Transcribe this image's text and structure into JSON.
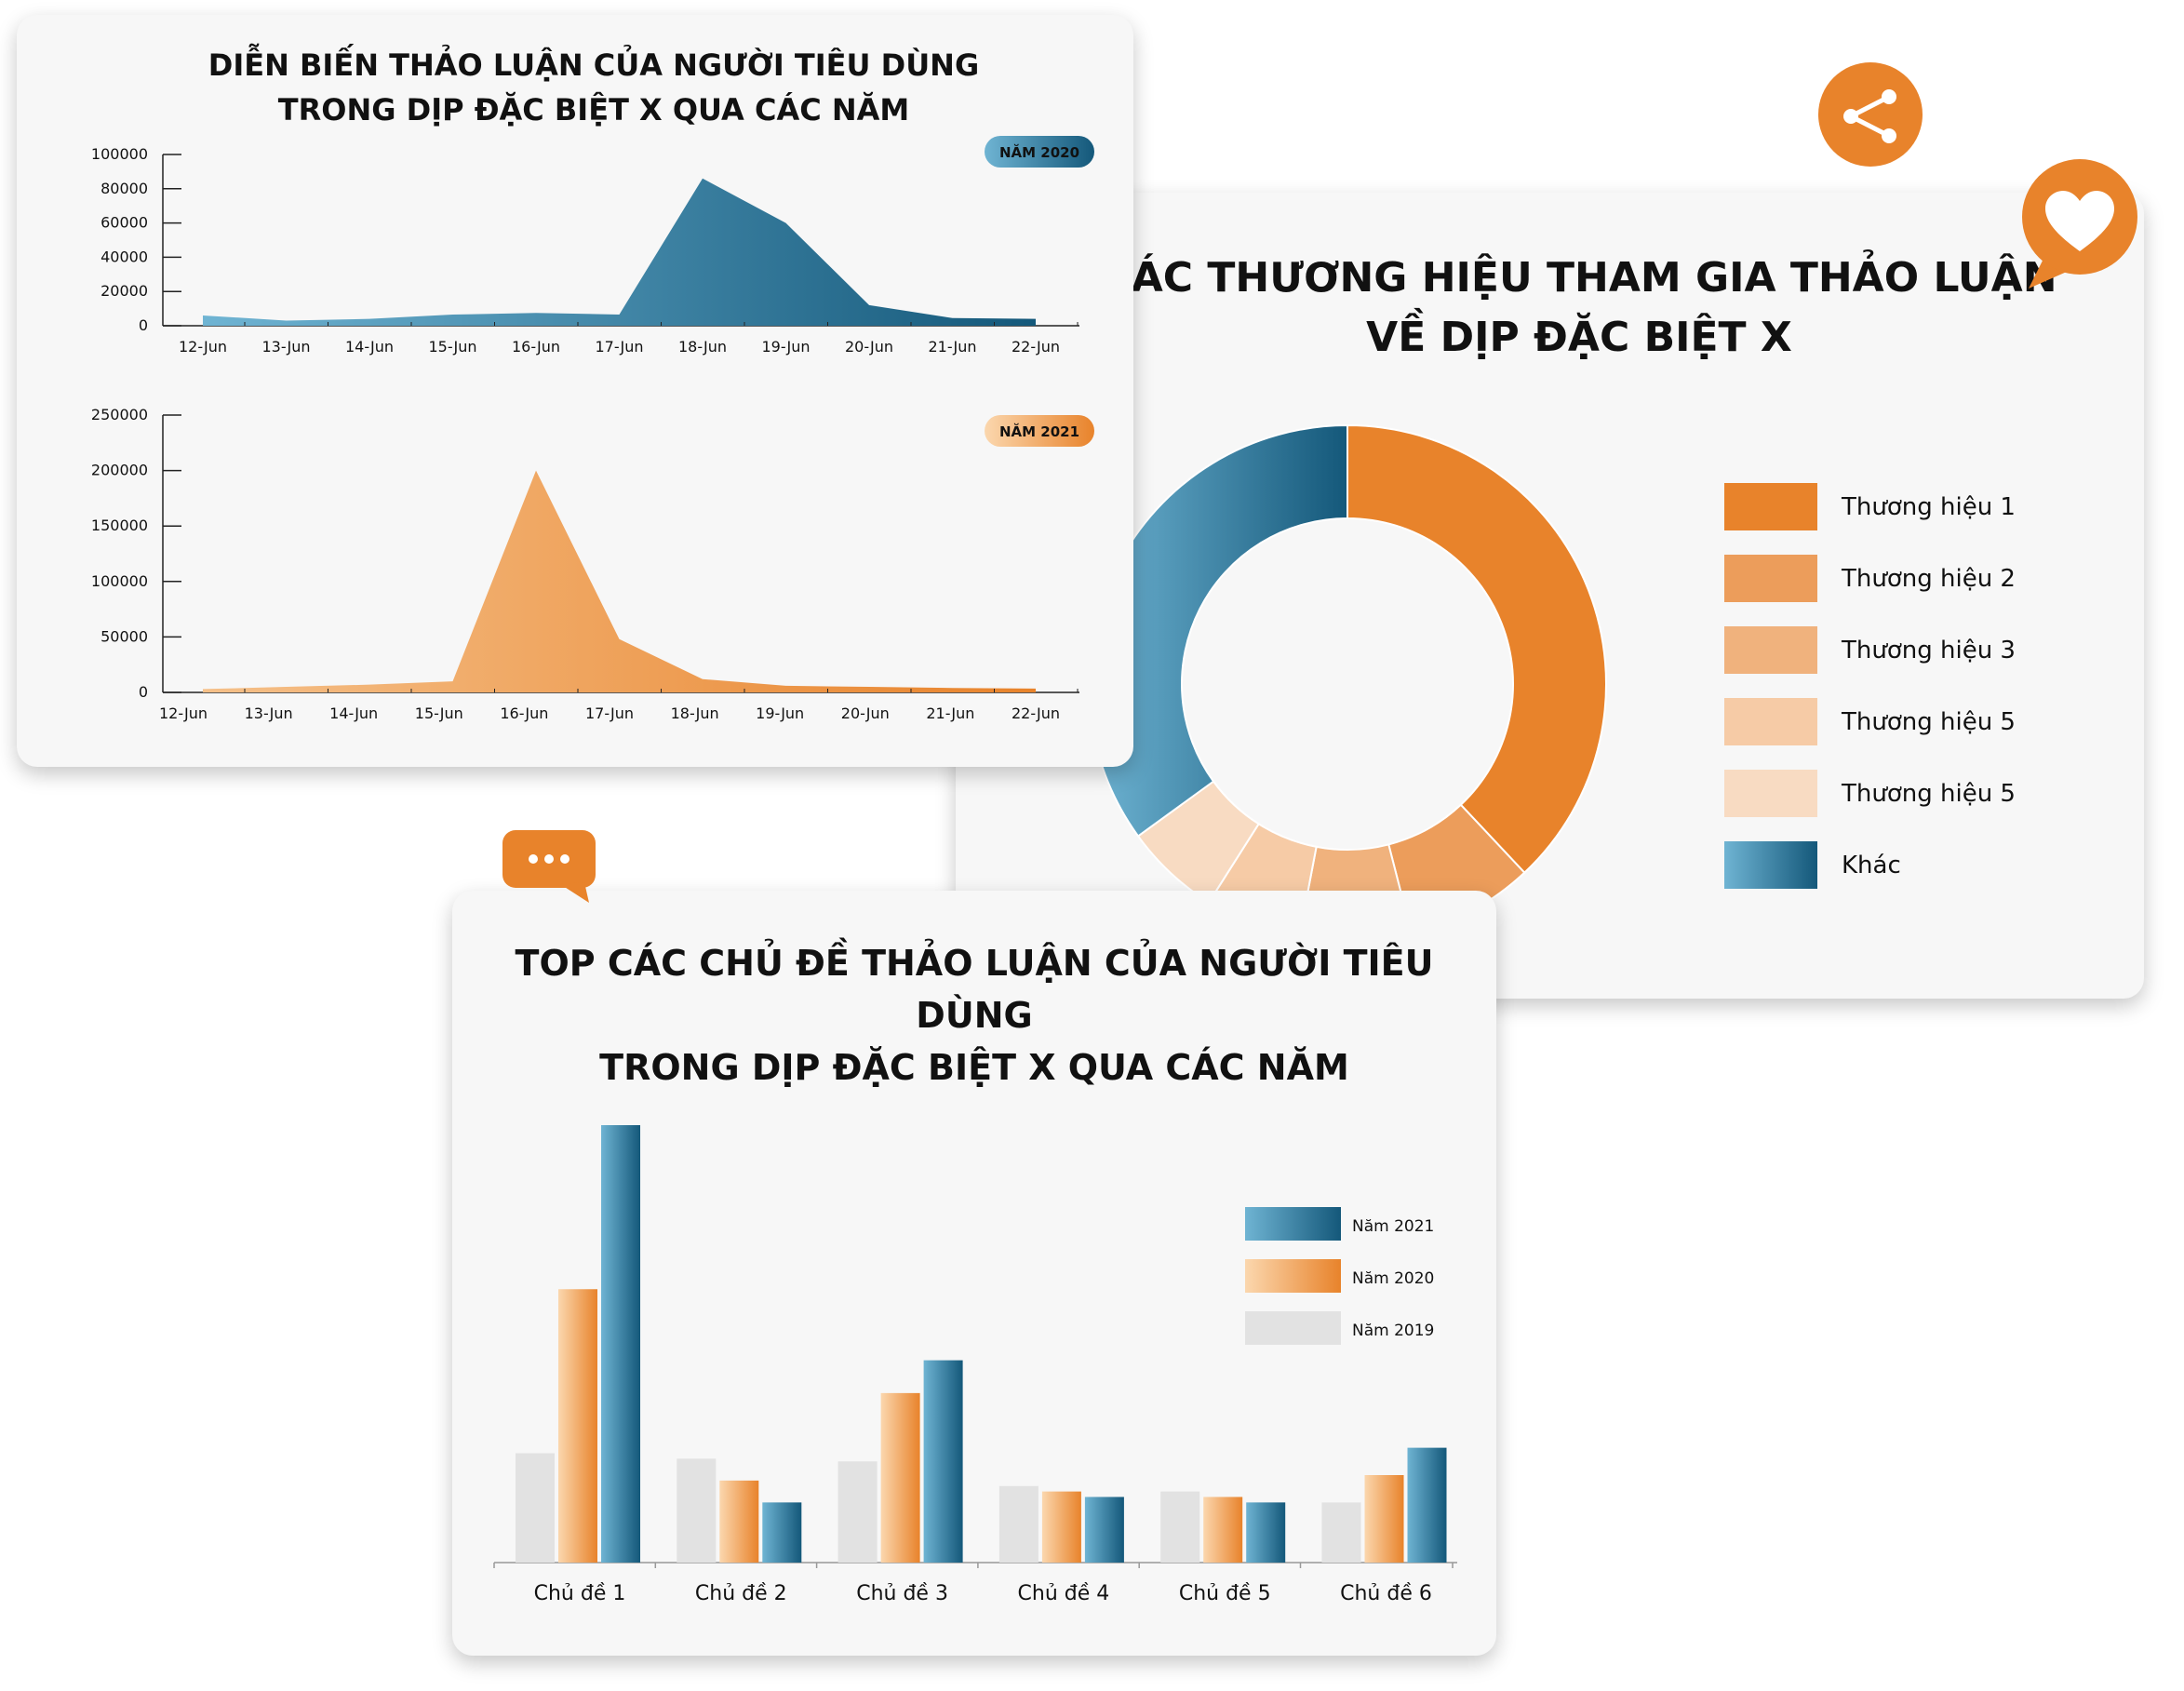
{
  "colors": {
    "orange": "#E8832B",
    "blue_dark": "#14587A",
    "blue_light": "#6FB4D3",
    "peach": "#F5C089",
    "grey": "#E2E2E2",
    "card_bg": "#F7F7F7"
  },
  "icons": [
    "share-icon",
    "heart-icon",
    "chat-icon"
  ],
  "chart_data": [
    {
      "id": "discussion_trend",
      "type": "area",
      "title_line1": "DIỄN BIẾN THẢO LUẬN CỦA NGƯỜI TIÊU DÙNG",
      "title_line2": "TRONG DỊP ĐẶC BIỆT X QUA CÁC NĂM",
      "panels": [
        {
          "badge": "NĂM 2020",
          "x": [
            "12-Jun",
            "13-Jun",
            "14-Jun",
            "15-Jun",
            "16-Jun",
            "17-Jun",
            "18-Jun",
            "19-Jun",
            "20-Jun",
            "21-Jun",
            "22-Jun"
          ],
          "values": [
            6000,
            3000,
            4000,
            6500,
            7500,
            6500,
            86000,
            60000,
            12000,
            4500,
            4000
          ],
          "ylim": [
            0,
            100000
          ],
          "yticks": [
            "100000",
            "80000",
            "60000",
            "40000",
            "20000",
            "0"
          ]
        },
        {
          "badge": "NĂM 2021",
          "x": [
            "12-Jun",
            "13-Jun",
            "14-Jun",
            "15-Jun",
            "16-Jun",
            "17-Jun",
            "18-Jun",
            "19-Jun",
            "20-Jun",
            "21-Jun",
            "22-Jun"
          ],
          "values": [
            3000,
            5000,
            7000,
            10000,
            200000,
            48000,
            12000,
            6000,
            5000,
            4000,
            3500
          ],
          "ylim": [
            0,
            250000
          ],
          "yticks": [
            "250000",
            "200000",
            "150000",
            "100000",
            "50000",
            "0"
          ]
        }
      ]
    },
    {
      "id": "brand_share",
      "type": "pie",
      "title_line1": "CÁC THƯƠNG HIỆU THAM GIA THẢO LUẬN",
      "title_line2": "VỀ DỊP ĐẶC BIỆT X",
      "legend": [
        "Thương hiệu 1",
        "Thương hiệu 2",
        "Thương hiệu 3",
        "Thương hiệu 5",
        "Thương hiệu 5",
        "Khác"
      ],
      "values": [
        38,
        8,
        7,
        6,
        6,
        35
      ]
    },
    {
      "id": "top_topics",
      "type": "bar",
      "title_line1": "TOP CÁC CHỦ ĐỀ THẢO LUẬN CỦA NGƯỜI TIÊU DÙNG",
      "title_line2": "TRONG DỊP ĐẶC BIỆT X QUA CÁC NĂM",
      "categories": [
        "Chủ đề 1",
        "Chủ đề 2",
        "Chủ đề 3",
        "Chủ đề 4",
        "Chủ đề 5",
        "Chủ đề 6"
      ],
      "legend": [
        "Năm 2021",
        "Năm 2020",
        "Năm 2019"
      ],
      "series": [
        {
          "name": "Năm 2019",
          "values": [
            20,
            19,
            18.5,
            14,
            13,
            11
          ]
        },
        {
          "name": "Năm 2020",
          "values": [
            50,
            15,
            31,
            13,
            12,
            16
          ]
        },
        {
          "name": "Năm 2021",
          "values": [
            80,
            11,
            37,
            12,
            11,
            21
          ]
        }
      ]
    }
  ]
}
